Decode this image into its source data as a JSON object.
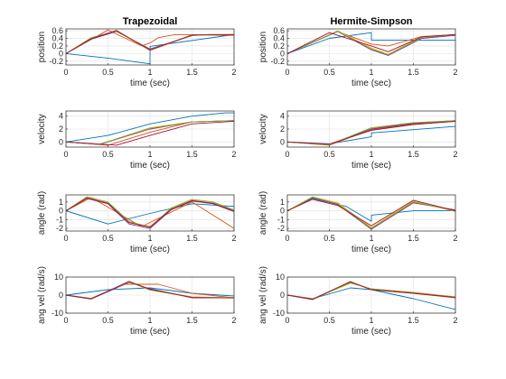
{
  "figure": {
    "background": "#ffffff"
  },
  "chart_data": [
    {
      "type": "line",
      "title": "Trapezoidal",
      "xlabel": "time (sec)",
      "ylabel": "position",
      "xlim": [
        0,
        2
      ],
      "ylim": [
        -0.3,
        0.65
      ],
      "xticks": [
        "0",
        "0.5",
        "1",
        "1.5",
        "2"
      ],
      "yticks": [
        "-0.2",
        "0",
        "0.2",
        "0.4",
        "0.6"
      ],
      "ytick_values": [
        -0.2,
        0,
        0.2,
        0.4,
        0.6
      ],
      "grid": true,
      "series": [
        {
          "color": "#0072BD",
          "x": [
            0,
            0.5,
            1,
            1.001,
            2
          ],
          "y": [
            0,
            -0.12,
            -0.27,
            0.19,
            0.5
          ]
        },
        {
          "color": "#D95319",
          "x": [
            0,
            0.5,
            0.9,
            1,
            1.1,
            1.3,
            1.6,
            1.9,
            2
          ],
          "y": [
            0,
            0.62,
            0.2,
            0.28,
            0.42,
            0.5,
            0.49,
            0.48,
            0.48
          ]
        },
        {
          "color": "#EDB120",
          "x": [
            0,
            0.3,
            0.6,
            1,
            1.5,
            1.7,
            2
          ],
          "y": [
            0,
            0.4,
            0.6,
            0.08,
            0.48,
            0.5,
            0.5
          ]
        },
        {
          "color": "#7E2F8E",
          "x": [
            0,
            0.3,
            0.6,
            1,
            1.5,
            1.7,
            2
          ],
          "y": [
            0,
            0.38,
            0.58,
            0.12,
            0.47,
            0.5,
            0.5
          ]
        },
        {
          "color": "#77AC30",
          "x": [
            0,
            0.3,
            0.6,
            1,
            1.5,
            1.7,
            2
          ],
          "y": [
            0,
            0.42,
            0.59,
            0.1,
            0.48,
            0.5,
            0.5
          ]
        },
        {
          "color": "#A2142F",
          "x": [
            0,
            0.3,
            0.6,
            1,
            1.5,
            1.7,
            2
          ],
          "y": [
            0,
            0.39,
            0.61,
            0.09,
            0.49,
            0.49,
            0.5
          ]
        }
      ]
    },
    {
      "type": "line",
      "title": "Hermite-Simpson",
      "xlabel": "time (sec)",
      "ylabel": "position",
      "xlim": [
        0,
        2
      ],
      "ylim": [
        -0.3,
        0.65
      ],
      "xticks": [
        "0",
        "0.5",
        "1",
        "1.5",
        "2"
      ],
      "yticks": [
        "-0.2",
        "0",
        "0.2",
        "0.4",
        "0.6"
      ],
      "ytick_values": [
        -0.2,
        0,
        0.2,
        0.4,
        0.6
      ],
      "grid": true,
      "series": [
        {
          "color": "#0072BD",
          "x": [
            0,
            0.5,
            1,
            1.001,
            2
          ],
          "y": [
            0,
            0.4,
            0.55,
            0.35,
            0.35
          ]
        },
        {
          "color": "#D95319",
          "x": [
            0,
            0.6,
            1,
            1.2,
            1.6,
            2
          ],
          "y": [
            0,
            0.58,
            0.25,
            0.2,
            0.45,
            0.5
          ]
        },
        {
          "color": "#EDB120",
          "x": [
            0,
            0.6,
            1,
            1.2,
            1.6,
            2
          ],
          "y": [
            0,
            0.6,
            0.15,
            -0.02,
            0.45,
            0.48
          ]
        },
        {
          "color": "#7E2F8E",
          "x": [
            0,
            0.6,
            1,
            1.2,
            1.6,
            2
          ],
          "y": [
            0,
            0.58,
            0.1,
            -0.05,
            0.4,
            0.48
          ]
        },
        {
          "color": "#77AC30",
          "x": [
            0,
            0.6,
            1,
            1.2,
            1.6,
            2
          ],
          "y": [
            0,
            0.59,
            0.12,
            -0.03,
            0.42,
            0.5
          ]
        },
        {
          "color": "#A2142F",
          "x": [
            0,
            0.5,
            1,
            1.2,
            1.6,
            2
          ],
          "y": [
            0,
            0.55,
            0.2,
            0.05,
            0.44,
            0.5
          ]
        }
      ]
    },
    {
      "type": "line",
      "title": "",
      "xlabel": "time (sec)",
      "ylabel": "velocity",
      "xlim": [
        0,
        2
      ],
      "ylim": [
        -0.8,
        4.8
      ],
      "xticks": [
        "0",
        "0.5",
        "1",
        "1.5",
        "2"
      ],
      "yticks": [
        "0",
        "2",
        "4"
      ],
      "ytick_values": [
        0,
        2,
        4
      ],
      "grid": true,
      "series": [
        {
          "color": "#0072BD",
          "x": [
            0,
            0.5,
            1,
            1.5,
            1.9,
            2
          ],
          "y": [
            0,
            1,
            2.8,
            4,
            4.5,
            4.5
          ]
        },
        {
          "color": "#D95319",
          "x": [
            0,
            0.5,
            1,
            1.5,
            2
          ],
          "y": [
            0,
            -0.5,
            1.5,
            3.1,
            3.3
          ]
        },
        {
          "color": "#EDB120",
          "x": [
            0,
            0.4,
            1,
            1.5,
            2
          ],
          "y": [
            0,
            -0.4,
            2.2,
            3.1,
            3.3
          ]
        },
        {
          "color": "#7E2F8E",
          "x": [
            0,
            0.4,
            1,
            1.5,
            2
          ],
          "y": [
            0,
            -0.4,
            2.0,
            3.1,
            3.3
          ]
        },
        {
          "color": "#77AC30",
          "x": [
            0,
            0.4,
            1,
            1.5,
            2
          ],
          "y": [
            0,
            -0.35,
            2.1,
            3.1,
            3.3
          ]
        },
        {
          "color": "#A2142F",
          "x": [
            0,
            0.6,
            1,
            1.5,
            2
          ],
          "y": [
            0,
            -0.5,
            1.0,
            2.8,
            3.2
          ]
        }
      ]
    },
    {
      "type": "line",
      "title": "",
      "xlabel": "time (sec)",
      "ylabel": "velocity",
      "xlim": [
        0,
        2
      ],
      "ylim": [
        -0.8,
        4.8
      ],
      "xticks": [
        "0",
        "0.5",
        "1",
        "1.5",
        "2"
      ],
      "yticks": [
        "0",
        "2",
        "4"
      ],
      "ytick_values": [
        0,
        2,
        4
      ],
      "grid": true,
      "series": [
        {
          "color": "#0072BD",
          "x": [
            0,
            0.5,
            1,
            1.001,
            2
          ],
          "y": [
            0,
            -0.3,
            0.8,
            1.4,
            2.4
          ]
        },
        {
          "color": "#D95319",
          "x": [
            0,
            0.5,
            1,
            1.5,
            2
          ],
          "y": [
            0,
            -0.5,
            1.9,
            2.8,
            3.2
          ]
        },
        {
          "color": "#EDB120",
          "x": [
            0,
            0.5,
            1,
            1.5,
            2
          ],
          "y": [
            0,
            -0.4,
            2.1,
            2.9,
            3.3
          ]
        },
        {
          "color": "#7E2F8E",
          "x": [
            0,
            0.5,
            1,
            1.5,
            2
          ],
          "y": [
            0,
            -0.4,
            2.0,
            2.9,
            3.3
          ]
        },
        {
          "color": "#77AC30",
          "x": [
            0,
            0.5,
            1,
            1.5,
            2
          ],
          "y": [
            0,
            -0.45,
            2.2,
            3.0,
            3.3
          ]
        },
        {
          "color": "#A2142F",
          "x": [
            0,
            0.5,
            1,
            1.5,
            2
          ],
          "y": [
            0,
            -0.35,
            1.8,
            2.7,
            3.2
          ]
        }
      ]
    },
    {
      "type": "line",
      "title": "",
      "xlabel": "time (sec)",
      "ylabel": "angle (rad)",
      "xlim": [
        0,
        2
      ],
      "ylim": [
        -2.3,
        1.8
      ],
      "xticks": [
        "0",
        "0.5",
        "1",
        "1.5",
        "2"
      ],
      "yticks": [
        "-2",
        "-1",
        "0",
        "1"
      ],
      "ytick_values": [
        -2,
        -1,
        0,
        1
      ],
      "grid": true,
      "series": [
        {
          "color": "#0072BD",
          "x": [
            0,
            0.5,
            1,
            1.5,
            2
          ],
          "y": [
            0,
            -1.5,
            -0.3,
            0.8,
            0.5
          ]
        },
        {
          "color": "#D95319",
          "x": [
            0,
            0.3,
            0.9,
            1.5,
            2
          ],
          "y": [
            0,
            1.5,
            -1.8,
            1.0,
            -2.0
          ]
        },
        {
          "color": "#EDB120",
          "x": [
            0,
            0.25,
            0.5,
            0.75,
            1.0,
            1.25,
            1.5,
            1.75,
            2.0
          ],
          "y": [
            0,
            1.5,
            0.9,
            -1.3,
            -1.8,
            0.2,
            1.2,
            0.9,
            0.0
          ]
        },
        {
          "color": "#7E2F8E",
          "x": [
            0,
            0.25,
            0.5,
            0.75,
            1.0,
            1.25,
            1.5,
            1.75,
            2.0
          ],
          "y": [
            0,
            1.4,
            0.8,
            -1.5,
            -2.0,
            0.1,
            1.1,
            0.8,
            -0.1
          ]
        },
        {
          "color": "#77AC30",
          "x": [
            0,
            0.25,
            0.5,
            0.75,
            1.0,
            1.25,
            1.5,
            1.75,
            2.0
          ],
          "y": [
            0,
            1.6,
            1.0,
            -1.2,
            -1.9,
            0.3,
            1.3,
            1.0,
            0.1
          ]
        },
        {
          "color": "#A2142F",
          "x": [
            0,
            0.25,
            0.5,
            0.75,
            1.0,
            1.25,
            1.5,
            1.75,
            2.0
          ],
          "y": [
            0,
            1.45,
            0.85,
            -1.35,
            -1.85,
            0.15,
            1.15,
            0.85,
            0.0
          ]
        }
      ]
    },
    {
      "type": "line",
      "title": "",
      "xlabel": "time (sec)",
      "ylabel": "angle (rad)",
      "xlim": [
        0,
        2
      ],
      "ylim": [
        -2.3,
        1.8
      ],
      "xticks": [
        "0",
        "0.5",
        "1",
        "1.5",
        "2"
      ],
      "yticks": [
        "-2",
        "-1",
        "0",
        "1"
      ],
      "ytick_values": [
        -2,
        -1,
        0,
        1
      ],
      "grid": true,
      "series": [
        {
          "color": "#0072BD",
          "x": [
            0,
            0.3,
            0.7,
            1.0,
            1.001,
            1.5,
            2
          ],
          "y": [
            0,
            1.4,
            0.5,
            -1.2,
            -0.5,
            0.0,
            0.0
          ]
        },
        {
          "color": "#D95319",
          "x": [
            0,
            0.3,
            0.6,
            1.0,
            1.5,
            2
          ],
          "y": [
            0,
            1.5,
            0.8,
            -2.0,
            1.0,
            0.0
          ]
        },
        {
          "color": "#EDB120",
          "x": [
            0,
            0.3,
            0.6,
            1.0,
            1.5,
            2
          ],
          "y": [
            0,
            1.6,
            0.9,
            -1.9,
            1.1,
            -0.1
          ]
        },
        {
          "color": "#7E2F8E",
          "x": [
            0,
            0.3,
            0.6,
            1.0,
            1.5,
            2
          ],
          "y": [
            0,
            1.5,
            0.7,
            -2.1,
            0.9,
            0.1
          ]
        },
        {
          "color": "#77AC30",
          "x": [
            0,
            0.3,
            0.6,
            1.0,
            1.5,
            2
          ],
          "y": [
            0,
            1.55,
            0.8,
            -2.0,
            1.0,
            0.0
          ]
        },
        {
          "color": "#A2142F",
          "x": [
            0,
            0.3,
            0.6,
            1.0,
            1.5,
            2
          ],
          "y": [
            0,
            1.3,
            0.6,
            -1.7,
            1.2,
            0.0
          ]
        }
      ]
    },
    {
      "type": "line",
      "title": "",
      "xlabel": "time (sec)",
      "ylabel": "ang vel (rad/s)",
      "xlim": [
        0,
        2
      ],
      "ylim": [
        -10,
        10
      ],
      "xticks": [
        "0",
        "0.5",
        "1",
        "1.5",
        "2"
      ],
      "yticks": [
        "-10",
        "0",
        "10"
      ],
      "ytick_values": [
        -10,
        0,
        10
      ],
      "grid": true,
      "series": [
        {
          "color": "#0072BD",
          "x": [
            0,
            0.5,
            1,
            1.5,
            2
          ],
          "y": [
            0,
            3,
            4,
            1,
            -0.5
          ]
        },
        {
          "color": "#D95319",
          "x": [
            0,
            0.3,
            0.7,
            1.1,
            1.5,
            2
          ],
          "y": [
            0,
            -2,
            6,
            6,
            1,
            -1.5
          ]
        },
        {
          "color": "#EDB120",
          "x": [
            0,
            0.3,
            0.75,
            1.0,
            1.5,
            2
          ],
          "y": [
            0,
            -2,
            7.5,
            3,
            -1,
            -1.5
          ]
        },
        {
          "color": "#7E2F8E",
          "x": [
            0,
            0.3,
            0.75,
            1.0,
            1.5,
            2
          ],
          "y": [
            0,
            -2.2,
            7,
            3.5,
            -1.5,
            -1.5
          ]
        },
        {
          "color": "#77AC30",
          "x": [
            0,
            0.3,
            0.75,
            1.0,
            1.5,
            2
          ],
          "y": [
            0,
            -1.8,
            7.3,
            2.8,
            -1.2,
            -1.4
          ]
        },
        {
          "color": "#A2142F",
          "x": [
            0,
            0.3,
            0.75,
            1.0,
            1.5,
            2
          ],
          "y": [
            0,
            -2.1,
            7.6,
            3.2,
            -1.3,
            -1.6
          ]
        }
      ]
    },
    {
      "type": "line",
      "title": "",
      "xlabel": "time (sec)",
      "ylabel": "ang vel (rad/s)",
      "xlim": [
        0,
        2
      ],
      "ylim": [
        -10,
        10
      ],
      "xticks": [
        "0",
        "0.5",
        "1",
        "1.5",
        "2"
      ],
      "yticks": [
        "-10",
        "0",
        "10"
      ],
      "ytick_values": [
        -10,
        0,
        10
      ],
      "grid": true,
      "series": [
        {
          "color": "#0072BD",
          "x": [
            0,
            0.3,
            0.75,
            1.0,
            1.5,
            2
          ],
          "y": [
            0,
            -2,
            4,
            3,
            -2,
            -8
          ]
        },
        {
          "color": "#D95319",
          "x": [
            0,
            0.3,
            0.75,
            1.0,
            1.5,
            2
          ],
          "y": [
            0,
            -2.5,
            7,
            3,
            1,
            -1.5
          ]
        },
        {
          "color": "#EDB120",
          "x": [
            0,
            0.3,
            0.75,
            1.0,
            1.5,
            2
          ],
          "y": [
            0,
            -2.2,
            6.5,
            3.5,
            1.5,
            -1
          ]
        },
        {
          "color": "#7E2F8E",
          "x": [
            0,
            0.3,
            0.75,
            1.0,
            1.5,
            2
          ],
          "y": [
            0,
            -2.4,
            7.2,
            3.2,
            1.2,
            -1.2
          ]
        },
        {
          "color": "#77AC30",
          "x": [
            0,
            0.3,
            0.75,
            1.0,
            1.5,
            2
          ],
          "y": [
            0,
            -2.1,
            6.8,
            3.4,
            1.4,
            -1.1
          ]
        },
        {
          "color": "#A2142F",
          "x": [
            0,
            0.3,
            0.75,
            1.0,
            1.5,
            2
          ],
          "y": [
            0,
            -2.3,
            7.5,
            3.0,
            1.0,
            -1.3
          ]
        }
      ]
    }
  ]
}
